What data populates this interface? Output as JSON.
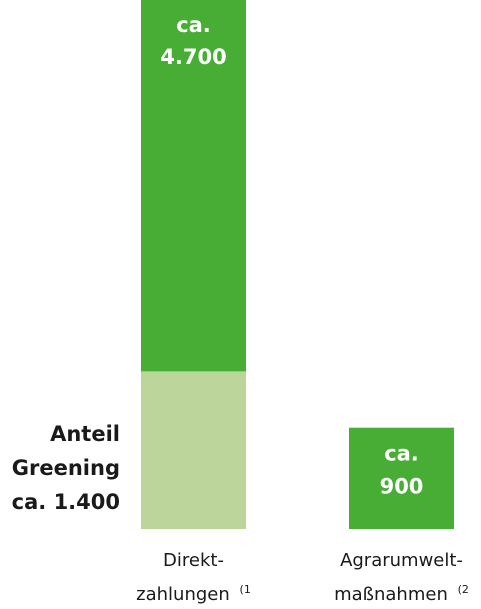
{
  "colors": {
    "bar": "#48ad35",
    "greening": "#bcd59b",
    "label_on_bar": "#ffffff",
    "text": "#1a1a1a"
  },
  "chart_data": {
    "type": "bar",
    "stacked": true,
    "categories": [
      {
        "line1": "Direkt-",
        "line2": "zahlungen",
        "footnote": "(1"
      },
      {
        "line1": "Agrarumwelt-",
        "line2": "maßnahmen",
        "footnote": "(2"
      }
    ],
    "series": [
      {
        "values": [
          3300,
          900
        ]
      },
      {
        "values": [
          1400,
          0
        ]
      }
    ],
    "totals": [
      4700,
      900
    ],
    "bar_labels": [
      {
        "line1": "ca.",
        "line2": "4.700"
      },
      {
        "line1": "ca.",
        "line2": "900"
      }
    ],
    "greening_label": {
      "line1": "Anteil",
      "line2": "Greening",
      "line3": "ca. 1.400"
    },
    "ylim": [
      0,
      4700
    ],
    "grid": false,
    "axes_visible": false
  }
}
